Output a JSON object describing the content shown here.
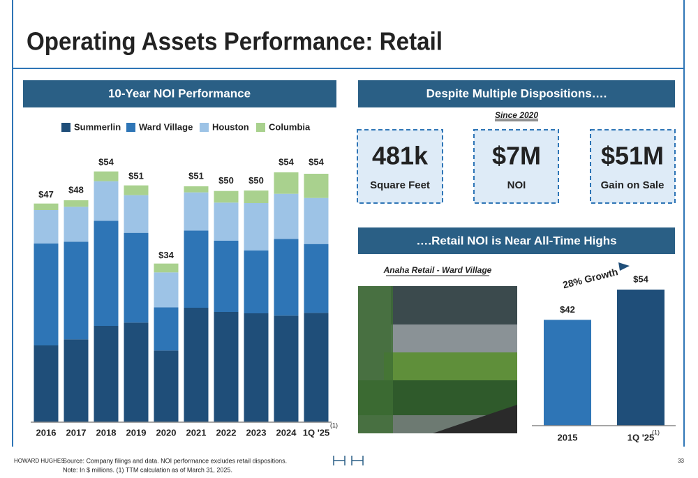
{
  "title": "Operating Assets Performance: Retail",
  "sections": [
    "10-Year NOI Performance",
    "Despite Multiple Dispositions….",
    "….Retail NOI is Near All-Time Highs"
  ],
  "since": "Since 2020",
  "kpis": [
    {
      "value": "481k",
      "label": "Square Feet"
    },
    {
      "value": "$7M",
      "label": "NOI"
    },
    {
      "value": "$51M",
      "label": "Gain on Sale"
    }
  ],
  "photo_caption": "Anaha Retail - Ward Village",
  "footer": {
    "brand": "HOWARD HUGHES",
    "source": "Source: Company filings and data. NOI performance excludes retail dispositions.",
    "note": "Note: In $ millions. (1) TTM calculation as of March 31, 2025.",
    "page": "33"
  },
  "chart_data": [
    {
      "type": "stacked-bar",
      "categories": [
        "2016",
        "2017",
        "2018",
        "2019",
        "2020",
        "2021",
        "2022",
        "2023",
        "2024",
        "1Q '25"
      ],
      "category_note": "(1)",
      "series": [
        {
          "name": "Summerlin",
          "color": "#1f4e79",
          "values": [
            16.5,
            17.8,
            20.7,
            21.4,
            15.4,
            24.6,
            23.7,
            23.4,
            22.9,
            23.5
          ]
        },
        {
          "name": "Ward Village",
          "color": "#2e75b6",
          "values": [
            21.9,
            21.0,
            22.6,
            19.3,
            9.3,
            16.6,
            15.3,
            13.5,
            16.5,
            14.8
          ]
        },
        {
          "name": "Houston",
          "color": "#9dc3e6",
          "values": [
            7.2,
            7.5,
            8.5,
            8.1,
            7.5,
            8.2,
            8.2,
            10.2,
            9.7,
            9.9
          ]
        },
        {
          "name": "Columbia",
          "color": "#a9d18e",
          "values": [
            1.4,
            1.4,
            2.1,
            2.1,
            1.9,
            1.3,
            2.5,
            2.7,
            4.6,
            5.2
          ]
        }
      ],
      "totals": [
        47,
        48,
        54,
        51,
        34,
        51,
        50,
        50,
        54,
        54
      ],
      "total_labels": [
        "$47",
        "$48",
        "$54",
        "$51",
        "$34",
        "$51",
        "$50",
        "$50",
        "$54",
        "$54"
      ]
    },
    {
      "type": "bar",
      "categories": [
        "2015",
        "1Q '25"
      ],
      "category_note": "(1)",
      "values": [
        42,
        54
      ],
      "value_labels": [
        "$42",
        "$54"
      ],
      "colors": [
        "#2e75b6",
        "#1f4e79"
      ],
      "annotation": "28% Growth"
    }
  ]
}
